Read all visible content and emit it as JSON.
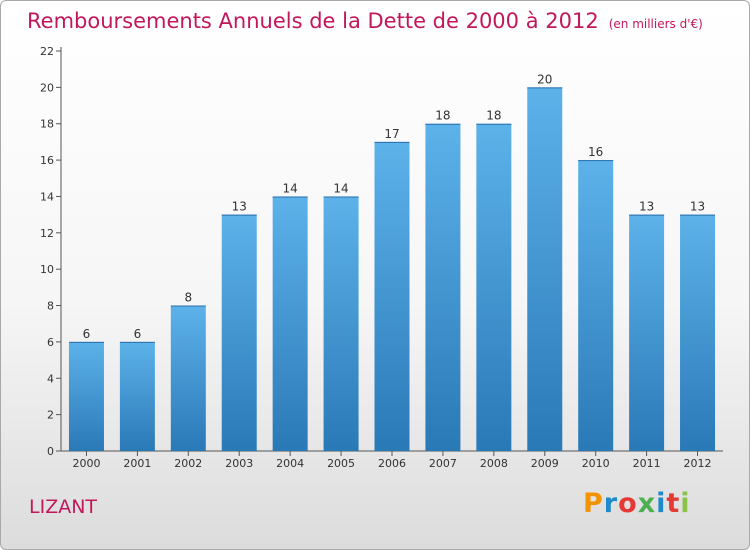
{
  "title": "Remboursements Annuels de la Dette de 2000 à 2012",
  "unit": "(en milliers d'€)",
  "commune": "LIZANT",
  "logo": {
    "text": "Proxiti",
    "colors": [
      "#f29400",
      "#1d8acb",
      "#e53935",
      "#4caf50",
      "#1d8acb",
      "#e53935",
      "#8bc34a"
    ]
  },
  "colors": {
    "bar": "#3d97d9",
    "bar_light": "#5db2ea",
    "bar_dark": "#2a79b7",
    "title": "#c2185b"
  },
  "chart_data": {
    "type": "bar",
    "categories": [
      "2000",
      "2001",
      "2002",
      "2003",
      "2004",
      "2005",
      "2006",
      "2007",
      "2008",
      "2009",
      "2010",
      "2011",
      "2012"
    ],
    "values": [
      6,
      6,
      8,
      13,
      14,
      14,
      17,
      18,
      18,
      20,
      16,
      13,
      13
    ],
    "ylim": [
      0,
      22
    ],
    "yticks": [
      0,
      2,
      4,
      6,
      8,
      10,
      12,
      14,
      16,
      18,
      20,
      22
    ],
    "grid": false,
    "data_labels": true
  }
}
